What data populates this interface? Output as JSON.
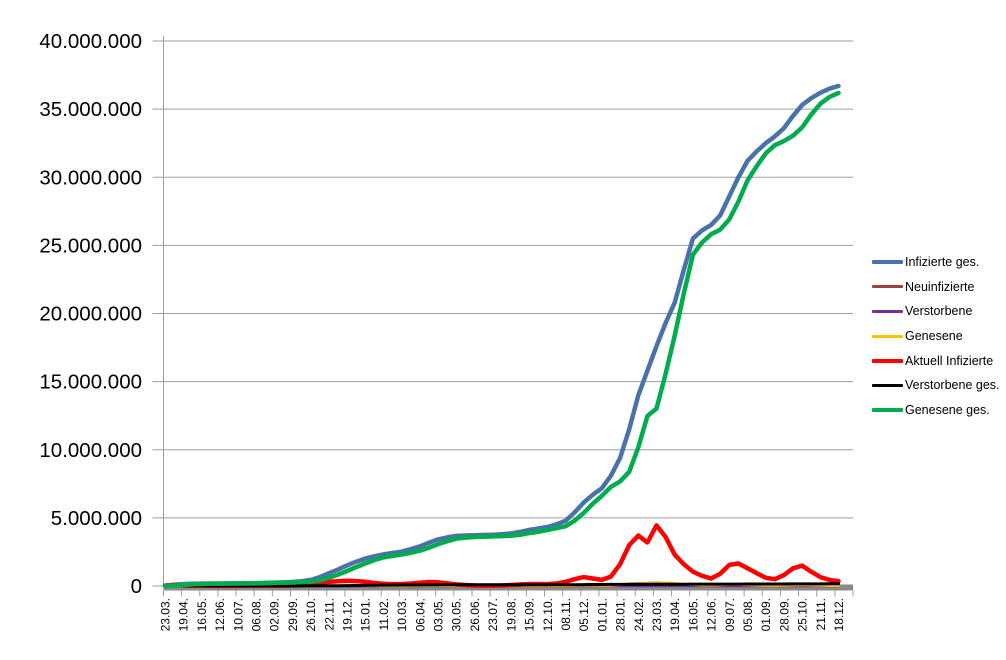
{
  "chart_data": {
    "type": "line",
    "title": "",
    "subtitle": "",
    "legend_position": "right",
    "grid": true,
    "x_labels_rotated_degrees": 90,
    "ylim_millions": [
      0,
      40
    ],
    "y_tick_step_millions": 5,
    "y_tick_labels": [
      "0",
      "5.000.000",
      "10.000.000",
      "15.000.000",
      "20.000.000",
      "25.000.000",
      "30.000.000",
      "35.000.000",
      "40.000.000"
    ],
    "categories": [
      "23.03.",
      "19.04.",
      "16.05.",
      "12.06.",
      "10.07.",
      "06.08.",
      "02.09.",
      "29.09.",
      "26.10.",
      "22.11.",
      "19.12.",
      "15.01.",
      "11.02.",
      "10.03.",
      "06.04.",
      "03.05.",
      "30.05.",
      "26.06.",
      "23.07.",
      "19.08.",
      "15.09.",
      "12.10.",
      "08.11.",
      "05.12.",
      "01.01.",
      "28.01.",
      "24.02.",
      "23.03.",
      "19.04.",
      "16.05.",
      "12.06.",
      "09.07.",
      "05.08.",
      "01.09.",
      "28.09.",
      "25.10.",
      "21.11.",
      "18.12."
    ],
    "samples_per_category": 2,
    "colors": {
      "grid": "#9E9E9E",
      "axis_bar": "#8A8A8A",
      "background": "#FFFFFF",
      "text": "#000000"
    },
    "series": [
      {
        "key": "infizierte-ges",
        "label": "Infizierte ges.",
        "color": "#4A72A8",
        "line_width": 4.5,
        "values_millions": [
          0.03,
          0.09,
          0.14,
          0.16,
          0.175,
          0.182,
          0.187,
          0.193,
          0.199,
          0.206,
          0.213,
          0.228,
          0.246,
          0.266,
          0.29,
          0.35,
          0.44,
          0.65,
          0.93,
          1.2,
          1.51,
          1.78,
          2.01,
          2.18,
          2.32,
          2.42,
          2.52,
          2.7,
          2.91,
          3.18,
          3.42,
          3.57,
          3.68,
          3.71,
          3.73,
          3.74,
          3.76,
          3.8,
          3.85,
          3.97,
          4.11,
          4.22,
          4.33,
          4.52,
          4.78,
          5.4,
          6.12,
          6.7,
          7.18,
          8.1,
          9.4,
          11.5,
          14.0,
          15.8,
          17.6,
          19.3,
          20.8,
          23.2,
          25.5,
          26.1,
          26.5,
          27.2,
          28.6,
          30.0,
          31.2,
          31.9,
          32.5,
          33.0,
          33.6,
          34.5,
          35.3,
          35.8,
          36.2,
          36.5,
          36.7
        ]
      },
      {
        "key": "neuinfizierte",
        "label": "Neuinfizierte",
        "color": "#9E413E",
        "line_width": 2.5,
        "values_millions": [
          0.003,
          0.006,
          0.004,
          0.002,
          0.001,
          0.001,
          0.0005,
          0.0005,
          0.0005,
          0.0006,
          0.001,
          0.001,
          0.0015,
          0.002,
          0.002,
          0.004,
          0.008,
          0.015,
          0.018,
          0.02,
          0.025,
          0.022,
          0.015,
          0.01,
          0.008,
          0.009,
          0.01,
          0.015,
          0.02,
          0.022,
          0.018,
          0.012,
          0.006,
          0.002,
          0.001,
          0.001,
          0.001,
          0.002,
          0.005,
          0.008,
          0.01,
          0.01,
          0.009,
          0.012,
          0.02,
          0.04,
          0.05,
          0.04,
          0.03,
          0.06,
          0.1,
          0.16,
          0.19,
          0.21,
          0.25,
          0.22,
          0.18,
          0.12,
          0.08,
          0.05,
          0.06,
          0.09,
          0.12,
          0.1,
          0.07,
          0.05,
          0.03,
          0.03,
          0.05,
          0.07,
          0.08,
          0.06,
          0.04,
          0.02,
          0.015
        ]
      },
      {
        "key": "verstorbene",
        "label": "Verstorbene",
        "color": "#7030A0",
        "line_width": 2.5,
        "values_millions": [
          0.0002,
          0.0005,
          0.0008,
          0.0006,
          0.0004,
          0.0003,
          0.0002,
          0.0002,
          0.0002,
          0.0002,
          0.0002,
          0.0002,
          0.0002,
          0.0002,
          0.0003,
          0.0003,
          0.0004,
          0.0006,
          0.0008,
          0.0009,
          0.001,
          0.001,
          0.0009,
          0.0007,
          0.0005,
          0.0004,
          0.0004,
          0.0004,
          0.0004,
          0.0004,
          0.0003,
          0.0003,
          0.0002,
          0.0002,
          0.0001,
          0.0001,
          0.0001,
          0.0001,
          0.0001,
          0.0002,
          0.0002,
          0.0002,
          0.0002,
          0.0002,
          0.0003,
          0.0003,
          0.0004,
          0.0004,
          0.0004,
          0.0004,
          0.0004,
          0.0004,
          0.0004,
          0.0004,
          0.0004,
          0.0004,
          0.0004,
          0.0003,
          0.0003,
          0.0003,
          0.0002,
          0.0002,
          0.0002,
          0.0002,
          0.0002,
          0.0002,
          0.0002,
          0.0002,
          0.0002,
          0.0002,
          0.0002,
          0.0002,
          0.0002,
          0.0002,
          0.0002
        ]
      },
      {
        "key": "genesene",
        "label": "Genesene",
        "color": "#FFC000",
        "line_width": 2.5,
        "values_millions": [
          0.002,
          0.004,
          0.005,
          0.003,
          0.002,
          0.001,
          0.001,
          0.0005,
          0.0005,
          0.0005,
          0.0008,
          0.001,
          0.001,
          0.0015,
          0.002,
          0.003,
          0.005,
          0.01,
          0.015,
          0.018,
          0.022,
          0.024,
          0.018,
          0.012,
          0.009,
          0.008,
          0.009,
          0.012,
          0.018,
          0.021,
          0.02,
          0.015,
          0.008,
          0.003,
          0.001,
          0.001,
          0.001,
          0.001,
          0.003,
          0.006,
          0.009,
          0.01,
          0.01,
          0.01,
          0.015,
          0.03,
          0.045,
          0.045,
          0.032,
          0.045,
          0.08,
          0.13,
          0.17,
          0.2,
          0.23,
          0.24,
          0.2,
          0.15,
          0.1,
          0.06,
          0.055,
          0.075,
          0.11,
          0.11,
          0.08,
          0.055,
          0.035,
          0.03,
          0.04,
          0.065,
          0.075,
          0.065,
          0.045,
          0.025,
          0.018
        ]
      },
      {
        "key": "aktuell-infizierte",
        "label": "Aktuell Infizierte",
        "color": "#FF0000",
        "line_width": 4.5,
        "values_millions": [
          0.03,
          0.065,
          0.05,
          0.03,
          0.02,
          0.015,
          0.01,
          0.01,
          0.01,
          0.012,
          0.015,
          0.018,
          0.02,
          0.025,
          0.035,
          0.05,
          0.12,
          0.22,
          0.3,
          0.35,
          0.38,
          0.36,
          0.31,
          0.22,
          0.16,
          0.14,
          0.14,
          0.18,
          0.24,
          0.29,
          0.27,
          0.2,
          0.12,
          0.07,
          0.04,
          0.03,
          0.03,
          0.04,
          0.07,
          0.11,
          0.14,
          0.15,
          0.14,
          0.18,
          0.3,
          0.5,
          0.65,
          0.55,
          0.45,
          0.7,
          1.6,
          3.0,
          3.7,
          3.2,
          4.45,
          3.6,
          2.3,
          1.6,
          1.05,
          0.75,
          0.55,
          0.9,
          1.55,
          1.65,
          1.3,
          0.95,
          0.6,
          0.5,
          0.8,
          1.3,
          1.5,
          1.05,
          0.65,
          0.45,
          0.35
        ]
      },
      {
        "key": "verstorbene-ges",
        "label": "Verstorbene ges.",
        "color": "#000000",
        "line_width": 3,
        "values_millions": [
          0.001,
          0.002,
          0.0045,
          0.007,
          0.008,
          0.0085,
          0.0088,
          0.009,
          0.0091,
          0.0092,
          0.0093,
          0.0094,
          0.0095,
          0.0096,
          0.0098,
          0.01,
          0.011,
          0.014,
          0.018,
          0.022,
          0.027,
          0.037,
          0.046,
          0.056,
          0.063,
          0.068,
          0.072,
          0.075,
          0.077,
          0.081,
          0.083,
          0.086,
          0.088,
          0.09,
          0.0905,
          0.091,
          0.0915,
          0.092,
          0.0925,
          0.093,
          0.0932,
          0.0935,
          0.094,
          0.095,
          0.0965,
          0.099,
          0.103,
          0.108,
          0.112,
          0.115,
          0.117,
          0.119,
          0.121,
          0.124,
          0.127,
          0.13,
          0.132,
          0.135,
          0.137,
          0.139,
          0.14,
          0.141,
          0.142,
          0.143,
          0.144,
          0.146,
          0.147,
          0.148,
          0.149,
          0.151,
          0.153,
          0.155,
          0.157,
          0.159,
          0.161
        ]
      },
      {
        "key": "genesene-ges",
        "label": "Genesene ges.",
        "color": "#00AC4E",
        "line_width": 4.5,
        "values_millions": [
          0.002,
          0.02,
          0.08,
          0.12,
          0.148,
          0.16,
          0.17,
          0.176,
          0.182,
          0.187,
          0.191,
          0.202,
          0.218,
          0.233,
          0.247,
          0.29,
          0.31,
          0.42,
          0.61,
          0.83,
          1.1,
          1.39,
          1.65,
          1.9,
          2.1,
          2.21,
          2.31,
          2.44,
          2.59,
          2.81,
          3.06,
          3.28,
          3.47,
          3.55,
          3.6,
          3.62,
          3.64,
          3.66,
          3.69,
          3.76,
          3.88,
          3.98,
          4.1,
          4.24,
          4.38,
          4.8,
          5.36,
          6.04,
          6.62,
          7.28,
          7.68,
          8.38,
          10.18,
          12.48,
          13.02,
          15.57,
          18.37,
          21.47,
          24.31,
          25.21,
          25.81,
          26.16,
          26.91,
          28.21,
          29.76,
          30.8,
          31.75,
          32.35,
          32.65,
          33.05,
          33.65,
          34.6,
          35.39,
          35.89,
          36.19
        ]
      }
    ]
  }
}
